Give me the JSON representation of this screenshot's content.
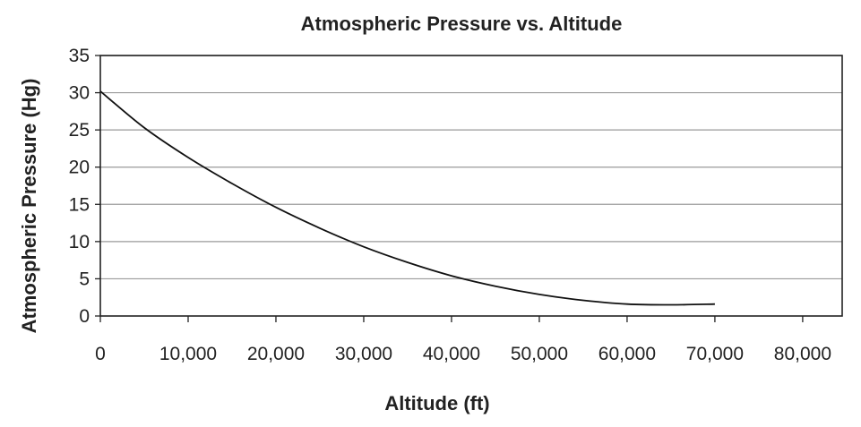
{
  "chart_data": {
    "type": "line",
    "title": "Atmospheric Pressure vs. Altitude",
    "xlabel": "Altitude (ft)",
    "ylabel": "Atmospheric Pressure (Hg)",
    "xlim": [
      0,
      84500
    ],
    "ylim": [
      0,
      35
    ],
    "x_ticks": [
      0,
      10000,
      20000,
      30000,
      40000,
      50000,
      60000,
      70000,
      80000
    ],
    "x_tick_labels": [
      "0",
      "10,000",
      "20,000",
      "30,000",
      "40,000",
      "50,000",
      "60,000",
      "70,000",
      "80,000"
    ],
    "y_ticks": [
      0,
      5,
      10,
      15,
      20,
      25,
      30,
      35
    ],
    "y_tick_labels": [
      "0",
      "5",
      "10",
      "15",
      "20",
      "25",
      "30",
      "35"
    ],
    "grid": "horizontal",
    "series": [
      {
        "color": "#111111",
        "x": [
          0,
          5000,
          10000,
          15000,
          20000,
          25000,
          30000,
          35000,
          40000,
          45000,
          50000,
          55000,
          60000,
          65000,
          70000
        ],
        "y": [
          30.2,
          25.3,
          21.3,
          17.8,
          14.6,
          11.8,
          9.3,
          7.2,
          5.4,
          4.0,
          2.9,
          2.1,
          1.6,
          1.5,
          1.6
        ]
      }
    ]
  }
}
